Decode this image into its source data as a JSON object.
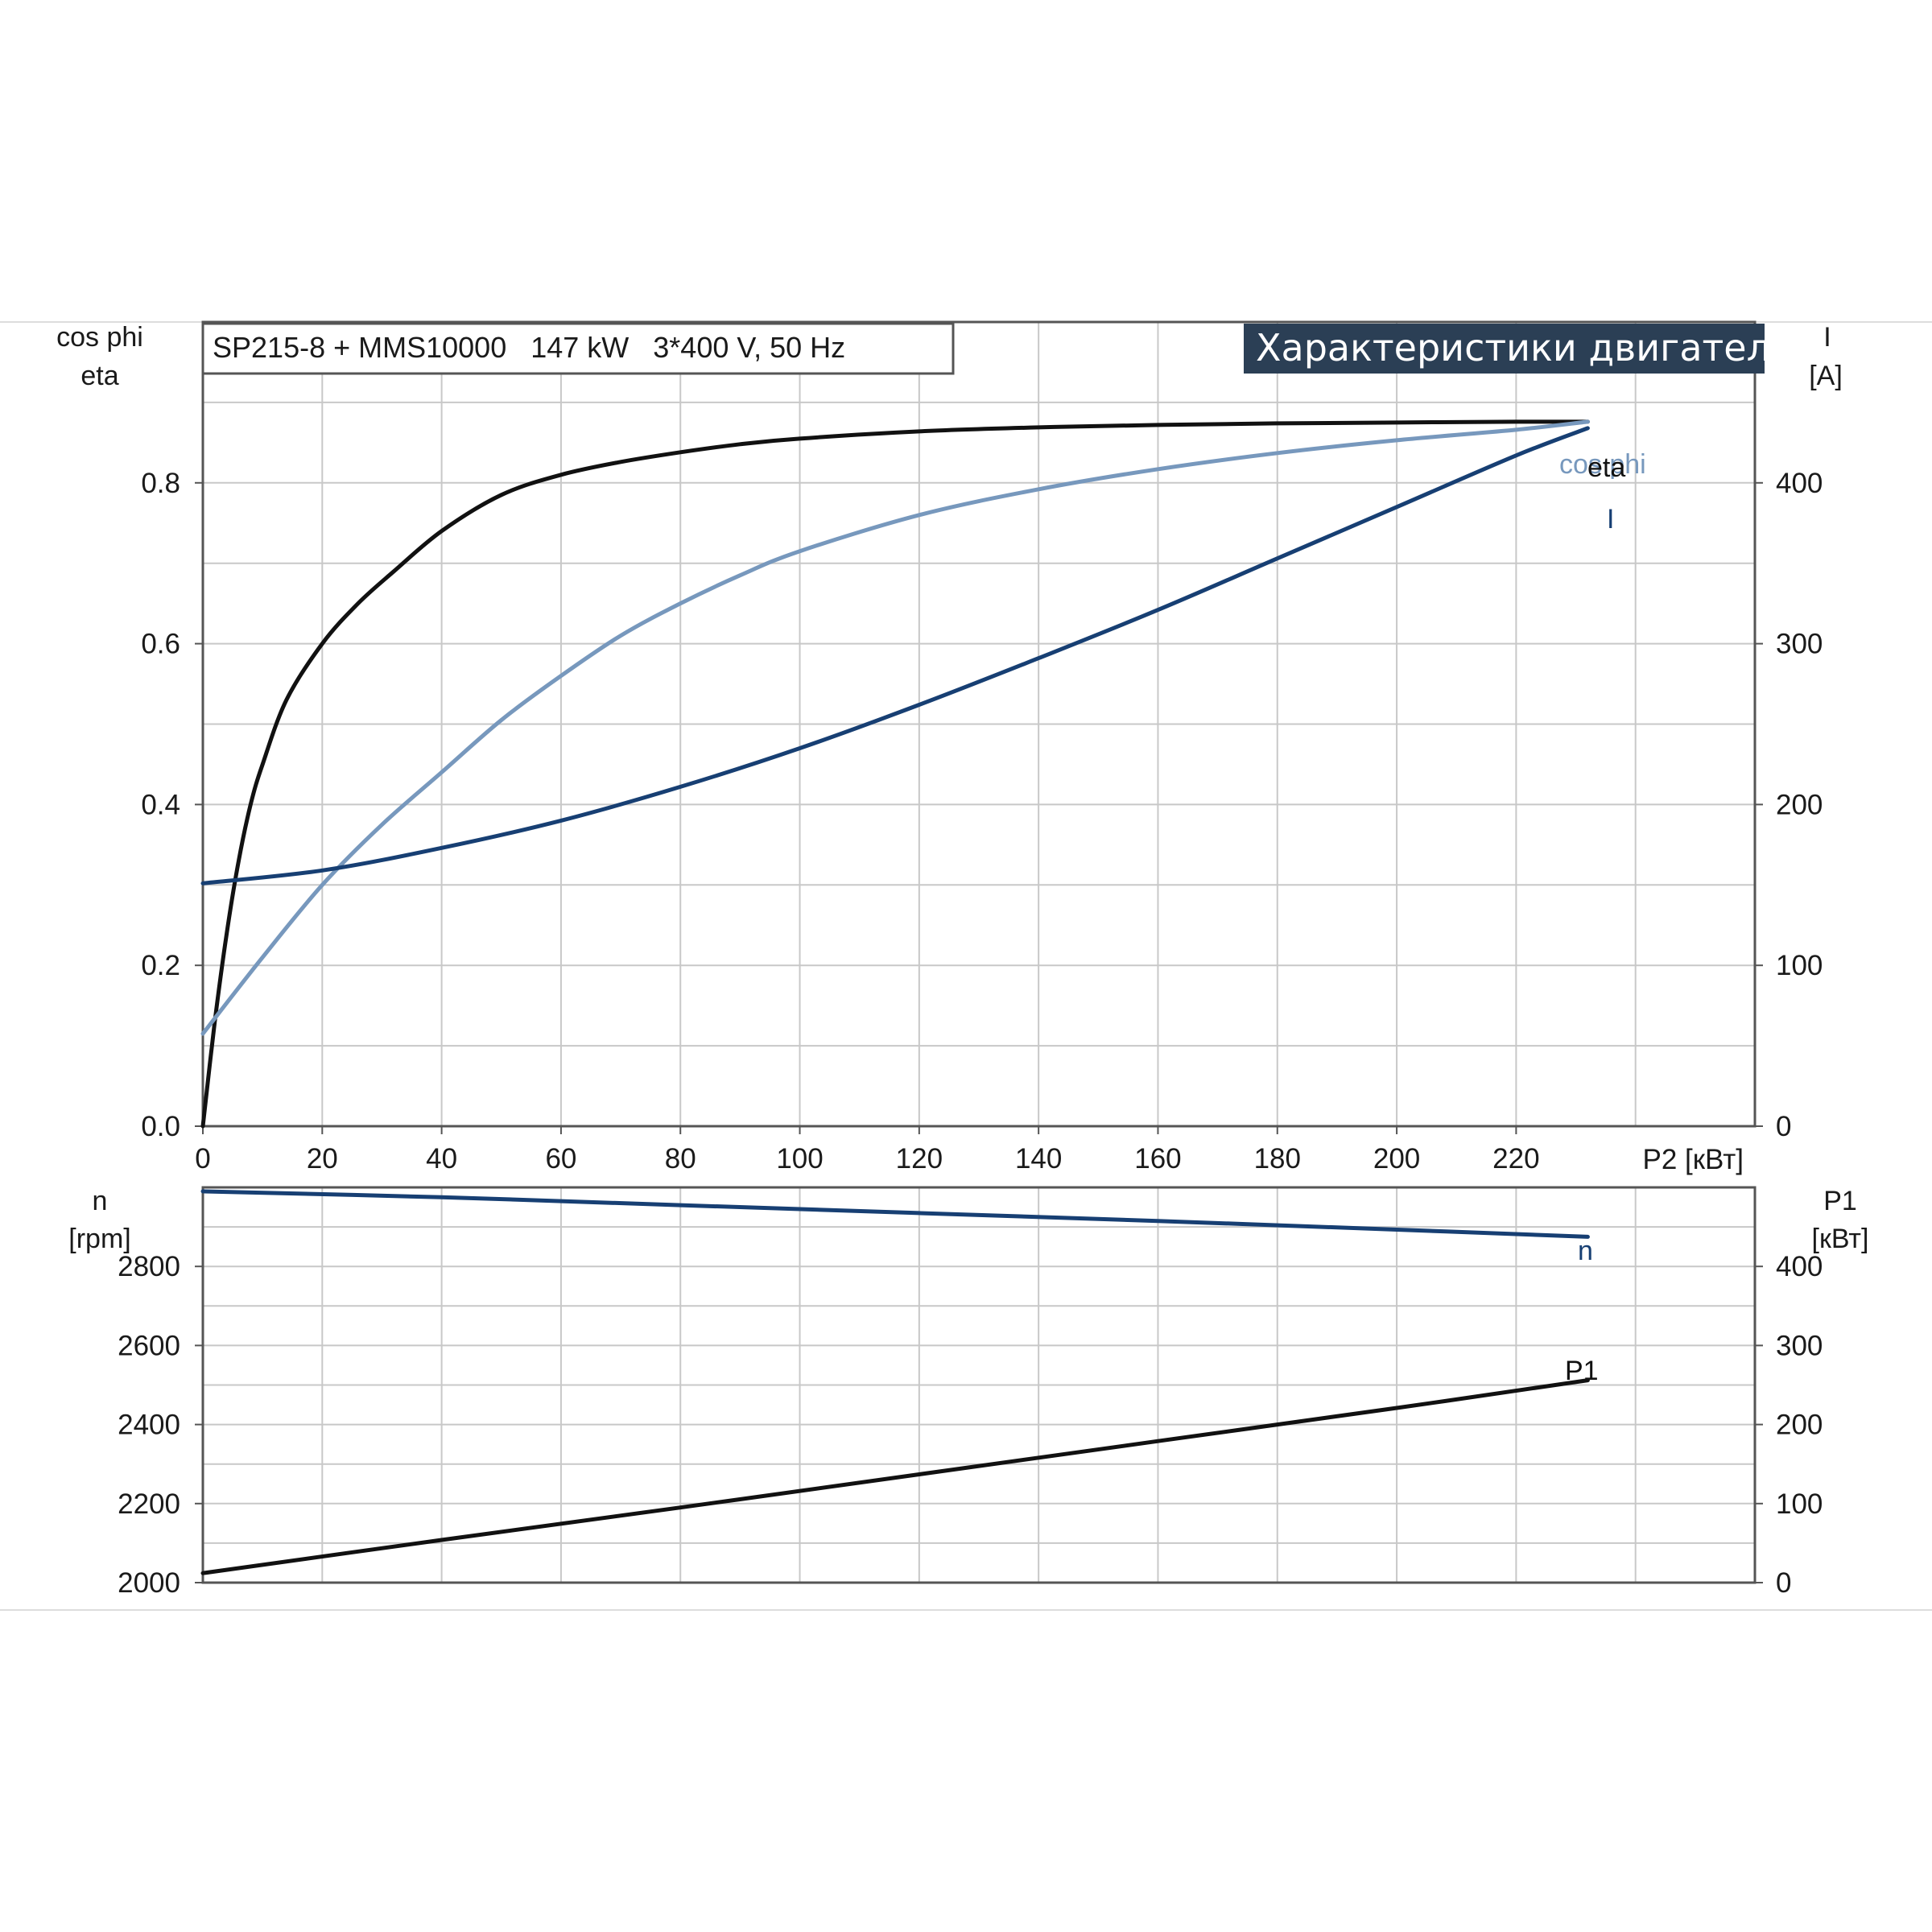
{
  "chart_data": [
    {
      "type": "line",
      "title": "SP215-8 + MMS10000   147 kW   3*400 V, 50 Hz",
      "banner": "Характеристики двигателя",
      "xlabel": "P2 [кВт]",
      "xlim": [
        0,
        260
      ],
      "xticks": [
        0,
        20,
        40,
        60,
        80,
        100,
        120,
        140,
        160,
        180,
        200,
        220
      ],
      "ylabel_left": [
        "cos phi",
        "eta"
      ],
      "ylim_left": [
        0,
        1.0
      ],
      "yticks_left": [
        0.0,
        0.2,
        0.4,
        0.6,
        0.8
      ],
      "ylabel_right": [
        "I",
        "[A]"
      ],
      "ylim_right": [
        0,
        500
      ],
      "yticks_right": [
        0,
        100,
        200,
        300,
        400
      ],
      "grid": true,
      "series": [
        {
          "name": "eta",
          "axis": "left",
          "color": "#111111",
          "x": [
            0,
            2,
            4,
            6,
            8,
            10,
            14,
            20,
            26,
            32,
            40,
            50,
            60,
            70,
            80,
            90,
            100,
            120,
            140,
            160,
            180,
            200,
            220,
            232
          ],
          "y": [
            0.0,
            0.13,
            0.24,
            0.33,
            0.4,
            0.45,
            0.53,
            0.6,
            0.65,
            0.69,
            0.74,
            0.785,
            0.81,
            0.826,
            0.838,
            0.848,
            0.855,
            0.864,
            0.869,
            0.872,
            0.874,
            0.875,
            0.876,
            0.876
          ]
        },
        {
          "name": "cos phi",
          "axis": "left",
          "color": "#7798bd",
          "x": [
            0,
            10,
            20,
            30,
            40,
            50,
            60,
            70,
            80,
            90,
            100,
            120,
            140,
            160,
            180,
            200,
            220,
            232
          ],
          "y": [
            0.115,
            0.21,
            0.3,
            0.375,
            0.44,
            0.505,
            0.56,
            0.61,
            0.65,
            0.685,
            0.715,
            0.76,
            0.792,
            0.817,
            0.837,
            0.853,
            0.866,
            0.876
          ]
        },
        {
          "name": "I",
          "axis": "right",
          "color": "#173f73",
          "x": [
            0,
            20,
            40,
            60,
            80,
            100,
            120,
            140,
            160,
            180,
            200,
            220,
            232
          ],
          "y": [
            151,
            159,
            173,
            190,
            211,
            235,
            262,
            291,
            321,
            353,
            385,
            417,
            434
          ]
        }
      ],
      "curve_labels": [
        "cos phi",
        "eta",
        "I"
      ]
    },
    {
      "type": "line",
      "xlim": [
        0,
        260
      ],
      "ylabel_left": [
        "n",
        "[rpm]"
      ],
      "ylim_left": [
        2000,
        3000
      ],
      "yticks_left": [
        2000,
        2200,
        2400,
        2600,
        2800
      ],
      "ylabel_right": [
        "P1",
        "[кВт]"
      ],
      "ylim_right": [
        0,
        500
      ],
      "yticks_right": [
        0,
        100,
        200,
        300,
        400
      ],
      "grid": true,
      "series": [
        {
          "name": "n",
          "axis": "left",
          "color": "#173f73",
          "x": [
            0,
            40,
            80,
            120,
            160,
            200,
            232
          ],
          "y": [
            2990,
            2975,
            2955,
            2935,
            2915,
            2893,
            2875
          ]
        },
        {
          "name": "P1",
          "axis": "right",
          "color": "#111111",
          "x": [
            0,
            40,
            80,
            120,
            160,
            200,
            232
          ],
          "y": [
            12,
            54,
            95,
            137,
            179,
            221,
            256
          ]
        }
      ],
      "curve_labels": [
        "n",
        "P1"
      ]
    }
  ]
}
